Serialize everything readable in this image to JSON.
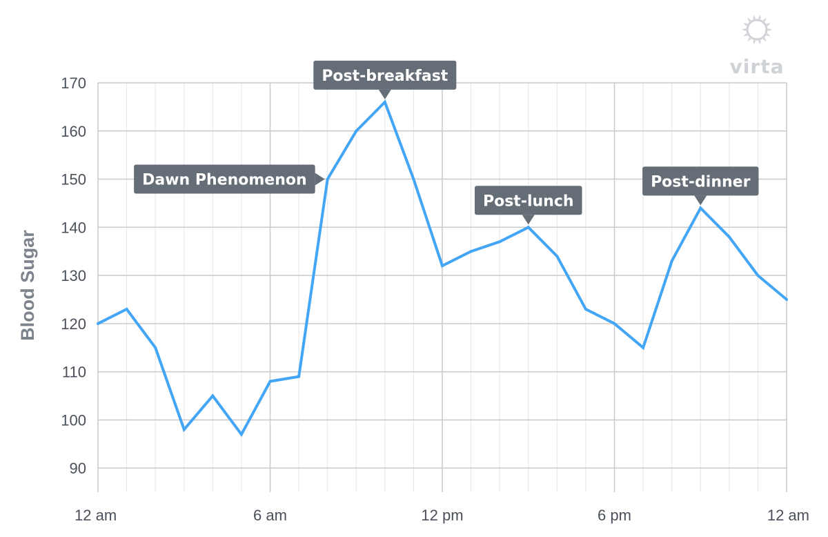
{
  "brand": {
    "name": "virta",
    "icon": "sun-icon",
    "color": "#cfd2d6"
  },
  "colors": {
    "line": "#42a5f5",
    "grid_major": "#c9c9c9",
    "grid_minor": "#e6e6e6",
    "callout": "#656d77",
    "tick_text": "#4a5059",
    "ylabel_text": "#7d838d"
  },
  "chart_data": {
    "type": "line",
    "title": "",
    "xlabel": "",
    "ylabel": "Blood Sugar",
    "ylim": [
      85,
      170
    ],
    "yticks": [
      90,
      100,
      110,
      120,
      130,
      140,
      150,
      160,
      170
    ],
    "xlim": [
      0,
      24
    ],
    "xticks": [
      {
        "hour": 0,
        "label": "12 am"
      },
      {
        "hour": 6,
        "label": "6 am"
      },
      {
        "hour": 12,
        "label": "12 pm"
      },
      {
        "hour": 18,
        "label": "6 pm"
      },
      {
        "hour": 24,
        "label": "12 am"
      }
    ],
    "grid": true,
    "series": [
      {
        "x": [
          0,
          1,
          2,
          3,
          4,
          5,
          6,
          7,
          8,
          9,
          10,
          11,
          12,
          13,
          14,
          15,
          16,
          17,
          18,
          19,
          20,
          21,
          22,
          23,
          24
        ],
        "values": [
          120,
          123,
          115,
          98,
          105,
          97,
          108,
          109,
          150,
          160,
          166,
          150,
          132,
          135,
          137,
          140,
          134,
          123,
          120,
          115,
          133,
          144,
          138,
          130,
          125
        ]
      }
    ],
    "annotations": [
      {
        "text": "Dawn Phenomenon",
        "x": 8,
        "y": 150,
        "pointer": "right"
      },
      {
        "text": "Post-breakfast",
        "x": 10,
        "y": 166,
        "pointer": "down"
      },
      {
        "text": "Post-lunch",
        "x": 15,
        "y": 140,
        "pointer": "down"
      },
      {
        "text": "Post-dinner",
        "x": 21,
        "y": 144,
        "pointer": "down"
      }
    ]
  }
}
